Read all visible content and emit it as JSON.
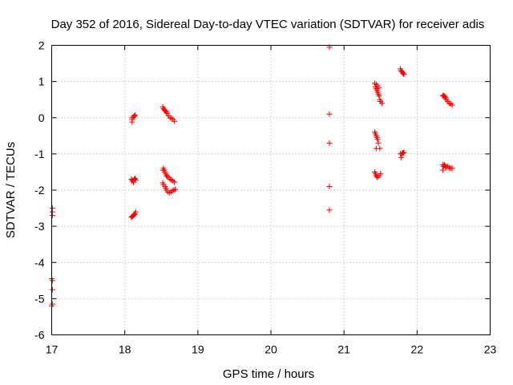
{
  "chart_data": {
    "type": "scatter",
    "title": "Day 352 of 2016, Sidereal Day-to-day VTEC variation (SDTVAR) for receiver adis",
    "xlabel": "GPS time / hours",
    "ylabel": "SDTVAR / TECUs",
    "xlim": [
      17,
      23
    ],
    "ylim": [
      -6,
      2
    ],
    "xticks": [
      17,
      18,
      19,
      20,
      21,
      22,
      23
    ],
    "yticks": [
      -6,
      -5,
      -4,
      -3,
      -2,
      -1,
      0,
      1,
      2
    ],
    "xtick_labels": [
      "17",
      "18",
      "19",
      "20",
      "21",
      "22",
      "23"
    ],
    "ytick_labels": [
      "-6",
      "-5",
      "-4",
      "-3",
      "-2",
      "-1",
      "0",
      "1",
      "2"
    ],
    "grid": true,
    "marker": "+",
    "color": "#ff0000",
    "series": [
      {
        "name": "SDTVAR",
        "points": [
          [
            17.01,
            -2.5
          ],
          [
            17.01,
            -2.6
          ],
          [
            17.01,
            -2.7
          ],
          [
            17.0,
            -4.45
          ],
          [
            17.01,
            -4.5
          ],
          [
            17.01,
            -4.75
          ],
          [
            17.01,
            -5.15
          ],
          [
            17.0,
            -5.2
          ],
          [
            18.1,
            0.0
          ],
          [
            18.1,
            -0.05
          ],
          [
            18.1,
            -0.12
          ],
          [
            18.12,
            0.02
          ],
          [
            18.13,
            0.05
          ],
          [
            18.14,
            0.07
          ],
          [
            18.09,
            -1.7
          ],
          [
            18.1,
            -1.75
          ],
          [
            18.11,
            -1.72
          ],
          [
            18.12,
            -1.78
          ],
          [
            18.13,
            -1.7
          ],
          [
            18.14,
            -1.68
          ],
          [
            18.15,
            -1.72
          ],
          [
            18.09,
            -2.75
          ],
          [
            18.1,
            -2.73
          ],
          [
            18.11,
            -2.72
          ],
          [
            18.12,
            -2.7
          ],
          [
            18.13,
            -2.68
          ],
          [
            18.14,
            -2.65
          ],
          [
            18.15,
            -2.6
          ],
          [
            18.52,
            0.3
          ],
          [
            18.53,
            0.25
          ],
          [
            18.54,
            0.22
          ],
          [
            18.55,
            0.2
          ],
          [
            18.56,
            0.18
          ],
          [
            18.57,
            0.15
          ],
          [
            18.58,
            0.12
          ],
          [
            18.6,
            0.05
          ],
          [
            18.62,
            0.0
          ],
          [
            18.64,
            -0.02
          ],
          [
            18.66,
            -0.05
          ],
          [
            18.68,
            -0.1
          ],
          [
            18.52,
            -1.45
          ],
          [
            18.53,
            -1.4
          ],
          [
            18.54,
            -1.45
          ],
          [
            18.55,
            -1.5
          ],
          [
            18.56,
            -1.55
          ],
          [
            18.57,
            -1.6
          ],
          [
            18.58,
            -1.62
          ],
          [
            18.6,
            -1.65
          ],
          [
            18.62,
            -1.7
          ],
          [
            18.64,
            -1.72
          ],
          [
            18.66,
            -1.75
          ],
          [
            18.68,
            -1.78
          ],
          [
            18.52,
            -1.8
          ],
          [
            18.53,
            -1.85
          ],
          [
            18.55,
            -1.9
          ],
          [
            18.56,
            -1.95
          ],
          [
            18.57,
            -2.0
          ],
          [
            18.59,
            -2.05
          ],
          [
            18.61,
            -2.08
          ],
          [
            18.63,
            -2.05
          ],
          [
            18.65,
            -2.02
          ],
          [
            18.67,
            -2.0
          ],
          [
            18.69,
            -1.98
          ],
          [
            20.8,
            1.95
          ],
          [
            20.8,
            0.1
          ],
          [
            20.8,
            -0.7
          ],
          [
            20.8,
            -1.9
          ],
          [
            20.8,
            -2.55
          ],
          [
            21.42,
            0.95
          ],
          [
            21.43,
            0.85
          ],
          [
            21.44,
            0.8
          ],
          [
            21.45,
            0.75
          ],
          [
            21.46,
            0.7
          ],
          [
            21.47,
            0.65
          ],
          [
            21.48,
            0.6
          ],
          [
            21.49,
            0.5
          ],
          [
            21.5,
            0.45
          ],
          [
            21.52,
            0.4
          ],
          [
            21.44,
            0.92
          ],
          [
            21.46,
            0.88
          ],
          [
            21.48,
            0.82
          ],
          [
            21.42,
            -0.4
          ],
          [
            21.43,
            -0.45
          ],
          [
            21.44,
            -0.5
          ],
          [
            21.45,
            -0.55
          ],
          [
            21.46,
            -0.6
          ],
          [
            21.47,
            -0.7
          ],
          [
            21.44,
            -0.85
          ],
          [
            21.49,
            -0.85
          ],
          [
            21.42,
            -1.5
          ],
          [
            21.43,
            -1.55
          ],
          [
            21.44,
            -1.6
          ],
          [
            21.45,
            -1.62
          ],
          [
            21.46,
            -1.65
          ],
          [
            21.48,
            -1.6
          ],
          [
            21.5,
            -1.55
          ],
          [
            21.77,
            1.35
          ],
          [
            21.78,
            1.3
          ],
          [
            21.79,
            1.28
          ],
          [
            21.8,
            1.25
          ],
          [
            21.81,
            1.22
          ],
          [
            21.82,
            1.2
          ],
          [
            21.77,
            -1.0
          ],
          [
            21.78,
            -1.1
          ],
          [
            21.79,
            -1.0
          ],
          [
            21.8,
            -0.98
          ],
          [
            21.81,
            -0.97
          ],
          [
            21.82,
            -0.96
          ],
          [
            22.35,
            0.6
          ],
          [
            22.36,
            0.62
          ],
          [
            22.37,
            0.6
          ],
          [
            22.38,
            0.58
          ],
          [
            22.39,
            0.55
          ],
          [
            22.4,
            0.5
          ],
          [
            22.42,
            0.45
          ],
          [
            22.44,
            0.4
          ],
          [
            22.46,
            0.38
          ],
          [
            22.48,
            0.35
          ],
          [
            22.35,
            -1.3
          ],
          [
            22.36,
            -1.35
          ],
          [
            22.37,
            -1.3
          ],
          [
            22.38,
            -1.32
          ],
          [
            22.39,
            -1.35
          ],
          [
            22.4,
            -1.38
          ],
          [
            22.42,
            -1.35
          ],
          [
            22.44,
            -1.38
          ],
          [
            22.46,
            -1.4
          ],
          [
            22.48,
            -1.4
          ],
          [
            22.35,
            -1.45
          ]
        ]
      }
    ]
  }
}
